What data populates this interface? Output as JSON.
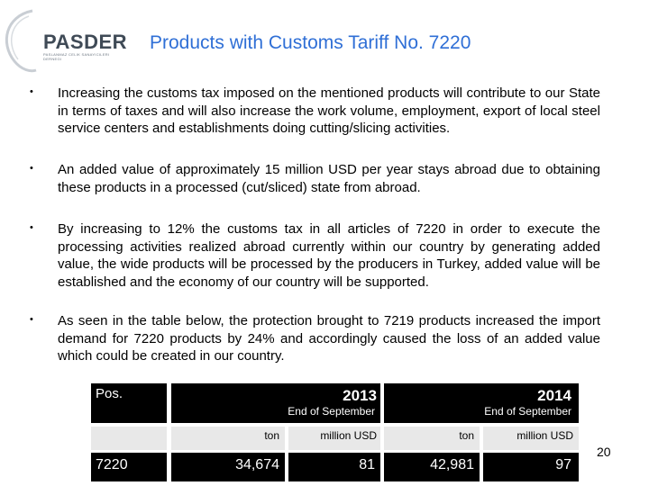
{
  "logo": {
    "word": "PASDER",
    "tagline_1": "PASLANMAZ CELIK SANAYICILERI",
    "tagline_2": "DERNEGI"
  },
  "title": "Products with Customs Tariff No. 7220",
  "bullets": [
    {
      "marker": "•",
      "text": "Increasing the customs tax imposed on the mentioned products will contribute to our State in terms of taxes and will also increase the work volume, employment, export of local steel service centers and establishments doing cutting/slicing activities."
    },
    {
      "marker": "•",
      "text": "An added value of approximately 15 million USD per year stays abroad due to obtaining these products in a processed (cut/sliced) state from abroad."
    },
    {
      "marker": "•",
      "text": "By increasing to 12% the customs tax in all articles of 7220 in order to execute the processing activities realized abroad currently within our country by generating added value, the wide products will be processed by the producers in Turkey, added value will be established and the economy of our country will be supported."
    },
    {
      "marker": "•",
      "text": "As seen in the table below, the protection brought to 7219 products increased the import demand for 7220 products by 24% and accordingly caused the loss of an added value which could be created in our country."
    }
  ],
  "table": {
    "pos_label": "Pos.",
    "year_2013": "2013",
    "year_2014": "2014",
    "period_2013": "End of September",
    "period_2014": "End of September",
    "unit_ton_2013": "ton",
    "unit_usd_2013": "million USD",
    "unit_ton_2014": "ton",
    "unit_usd_2014": "million USD",
    "row": {
      "pos": "7220",
      "ton_2013": "34,674",
      "usd_2013": "81",
      "ton_2014": "42,981",
      "usd_2014": "97"
    }
  },
  "page_number": "20"
}
